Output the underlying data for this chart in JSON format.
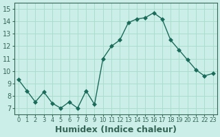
{
  "x": [
    0,
    1,
    2,
    3,
    4,
    5,
    6,
    7,
    8,
    9,
    10,
    11,
    12,
    13,
    14,
    15,
    16,
    17,
    18,
    19,
    20,
    21,
    22,
    23
  ],
  "y": [
    9.3,
    8.4,
    7.5,
    8.3,
    7.4,
    7.0,
    7.5,
    7.0,
    8.4,
    7.3,
    11.0,
    12.0,
    12.5,
    13.9,
    14.2,
    14.3,
    14.7,
    14.2,
    12.5,
    11.7,
    10.9,
    10.1,
    9.6,
    9.8
  ],
  "line_color": "#1a6b5a",
  "marker": "D",
  "marker_size": 3,
  "bg_color": "#cceee8",
  "grid_color": "#aaddcc",
  "xlabel": "Humidex (Indice chaleur)",
  "xlabel_fontsize": 9,
  "xlim": [
    -0.5,
    23.5
  ],
  "ylim": [
    6.5,
    15.5
  ],
  "yticks": [
    7,
    8,
    9,
    10,
    11,
    12,
    13,
    14,
    15
  ],
  "xtick_labels": [
    "0",
    "1",
    "2",
    "3",
    "4",
    "5",
    "6",
    "7",
    "8",
    "9",
    "10",
    "11",
    "12",
    "13",
    "14",
    "15",
    "16",
    "17",
    "18",
    "19",
    "20",
    "21",
    "22",
    "23"
  ],
  "tick_fontsize": 7,
  "axis_color": "#336655"
}
